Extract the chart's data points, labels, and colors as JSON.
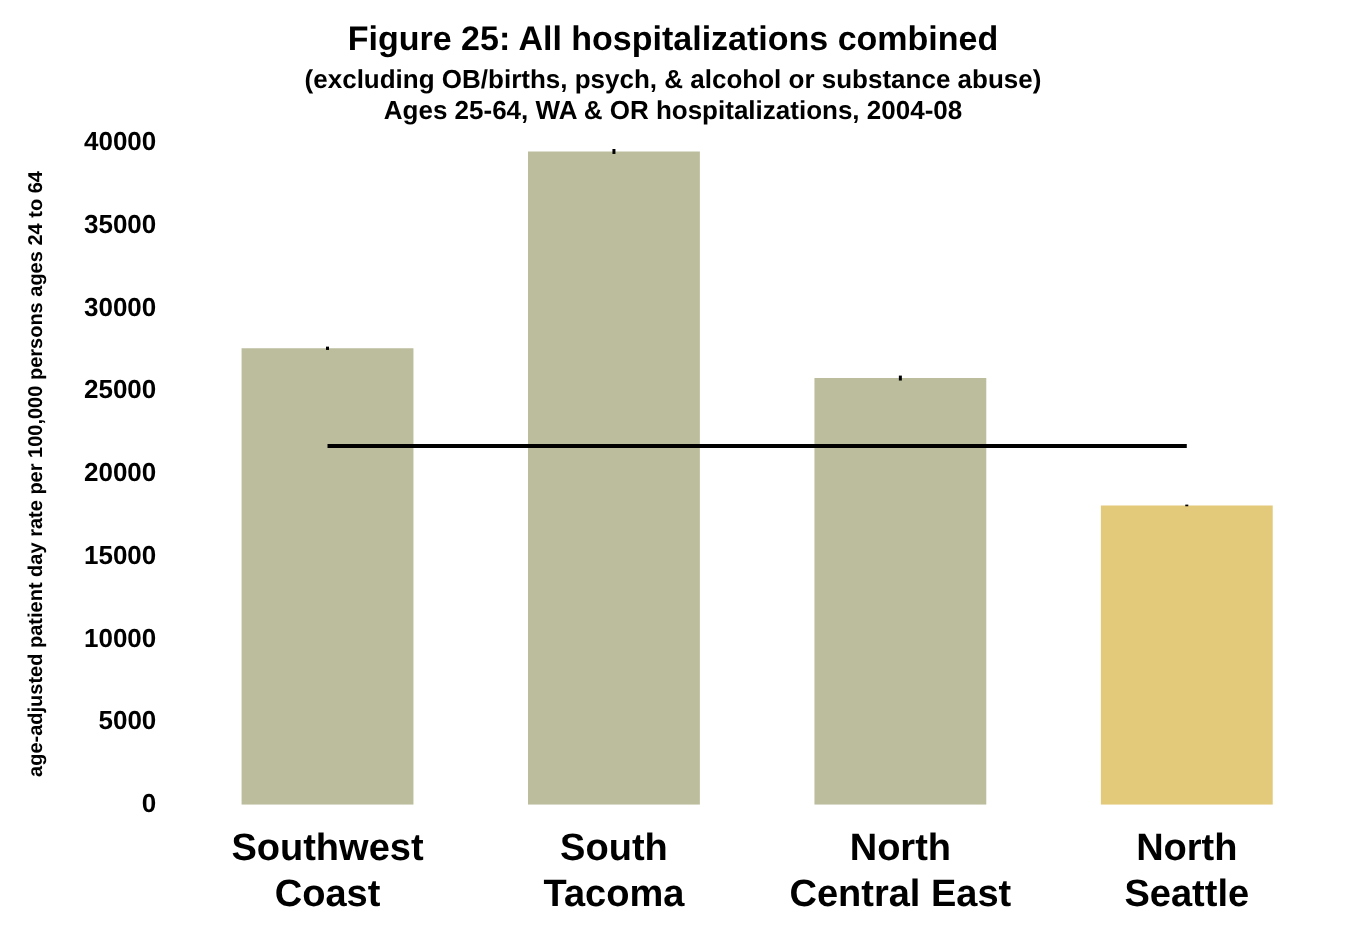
{
  "chart_data": {
    "type": "bar",
    "title": "Figure 25: All hospitalizations combined",
    "subtitle": "(excluding OB/births, psych, & alcohol or substance abuse)\nAges 25-64, WA & OR hospitalizations, 2004-08",
    "ylabel": "age-adjusted patient day rate per 100,000 persons ages 24 to 64",
    "categories": [
      "Southwest Coast",
      "South Tacoma",
      "North Central East",
      "North Seattle"
    ],
    "values": [
      27600,
      39500,
      25800,
      18100
    ],
    "errors": [
      100,
      150,
      150,
      50
    ],
    "colors": [
      "#bcbd9c",
      "#bcbd9c",
      "#bcbd9c",
      "#e3c97a"
    ],
    "ylim": [
      0,
      40000
    ],
    "yticks": [
      0,
      5000,
      10000,
      15000,
      20000,
      25000,
      30000,
      35000,
      40000
    ],
    "ref_lines": [
      {
        "axis": "y",
        "value": 21700,
        "color": "#000000"
      }
    ],
    "grid": false,
    "legend": false
  }
}
